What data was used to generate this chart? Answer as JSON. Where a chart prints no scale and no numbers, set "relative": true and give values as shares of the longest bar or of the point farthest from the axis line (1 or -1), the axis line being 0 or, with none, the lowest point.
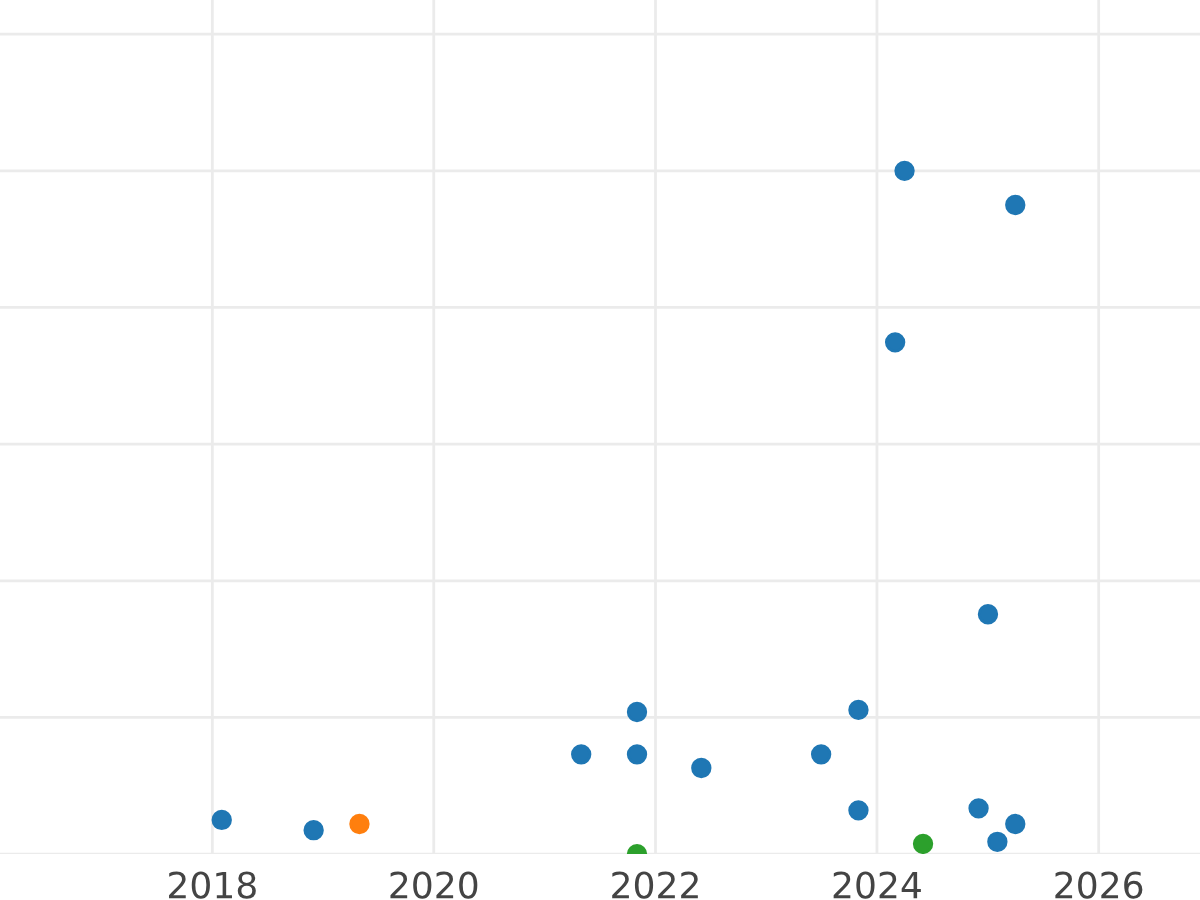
{
  "chart_data": {
    "type": "scatter",
    "relative": true,
    "grid": true,
    "marker": "circle",
    "xlim": [
      "2016-02",
      "2026-12"
    ],
    "xticks": [
      {
        "value": "2018",
        "label": "2018"
      },
      {
        "value": "2020",
        "label": "2020"
      },
      {
        "value": "2022",
        "label": "2022"
      },
      {
        "value": "2024",
        "label": "2024"
      },
      {
        "value": "2026",
        "label": "2026"
      }
    ],
    "series": [
      {
        "color": "#1f77b4",
        "x": [
          "2018-02",
          "2018-12",
          "2021-05",
          "2021-11",
          "2021-11",
          "2022-06",
          "2023-07",
          "2023-11",
          "2023-11",
          "2024-03",
          "2024-04",
          "2024-12",
          "2025-01",
          "2025-02",
          "2025-04",
          "2025-04"
        ],
        "values": [
          0.05,
          0.035,
          0.146,
          0.208,
          0.146,
          0.126,
          0.146,
          0.211,
          0.064,
          0.749,
          1.0,
          0.067,
          0.351,
          0.018,
          0.95,
          0.044
        ]
      },
      {
        "color": "#ff7f0e",
        "x": [
          "2019-05"
        ],
        "values": [
          0.044
        ]
      },
      {
        "color": "#2ca02c",
        "x": [
          "2021-11",
          "2024-06"
        ],
        "values": [
          0,
          0.015
        ]
      }
    ]
  }
}
